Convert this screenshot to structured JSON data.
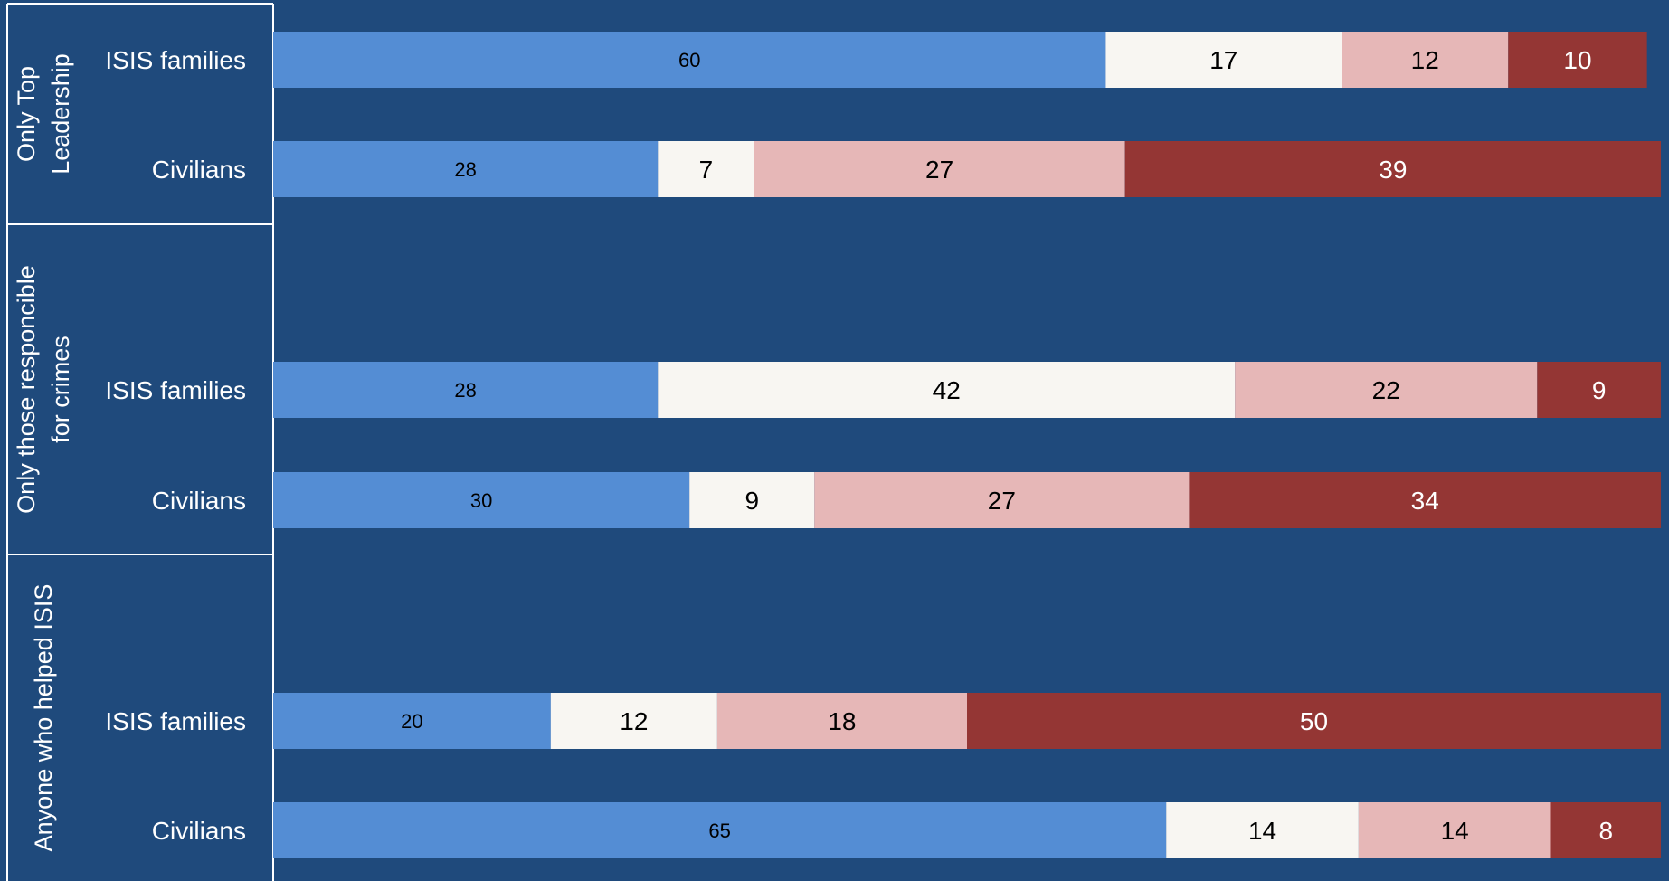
{
  "chart_data": {
    "type": "bar",
    "orientation": "horizontal",
    "stacked": true,
    "xlim": [
      0,
      100
    ],
    "grid": false,
    "legend": "none",
    "segment_colors": [
      "#548dd4",
      "#f8f6f2",
      "#e6b7b7",
      "#943634"
    ],
    "label_colors": [
      "#000000",
      "#000000",
      "#000000",
      "#ffffff"
    ],
    "groups": [
      {
        "name": "Only Top Leadership",
        "rows": [
          {
            "label": "ISIS families",
            "values": [
              60,
              17,
              12,
              10
            ]
          },
          {
            "label": "Civilians",
            "values": [
              28,
              7,
              27,
              39
            ]
          }
        ]
      },
      {
        "name": "Only those responcible for crimes",
        "rows": [
          {
            "label": "ISIS families",
            "values": [
              28,
              42,
              22,
              9
            ]
          },
          {
            "label": "Civilians",
            "values": [
              30,
              9,
              27,
              34
            ]
          }
        ]
      },
      {
        "name": "Anyone who helped ISIS",
        "rows": [
          {
            "label": "ISIS families",
            "values": [
              20,
              12,
              18,
              50
            ]
          },
          {
            "label": "Civilians",
            "values": [
              65,
              14,
              14,
              8
            ]
          }
        ]
      }
    ]
  }
}
